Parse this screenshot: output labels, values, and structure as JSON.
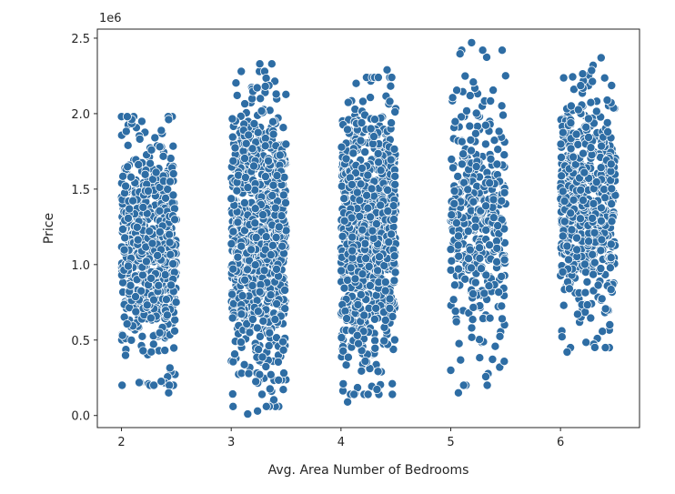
{
  "chart_data": {
    "type": "scatter",
    "title": "",
    "xlabel": "Avg. Area Number of Bedrooms",
    "ylabel": "Price",
    "y_offset_label": "1e6",
    "xlim": [
      1.78,
      6.72
    ],
    "ylim": [
      -0.08,
      2.56
    ],
    "x_ticks": [
      2,
      3,
      4,
      5,
      6
    ],
    "x_tick_labels": [
      "2",
      "3",
      "4",
      "5",
      "6"
    ],
    "y_ticks": [
      0.0,
      0.5,
      1.0,
      1.5,
      2.0,
      2.5
    ],
    "y_tick_labels": [
      "0.0",
      "0.5",
      "1.0",
      "1.5",
      "2.0",
      "2.5"
    ],
    "y_unit_note": "Price values in units of 1e6",
    "grid": false,
    "legend": "none",
    "marker_color": "#2e6da4",
    "clusters": [
      {
        "bedrooms_band": [
          2.0,
          2.5
        ],
        "price_range": [
          0.15,
          2.03
        ],
        "density": "medium"
      },
      {
        "bedrooms_band": [
          3.0,
          3.5
        ],
        "price_range": [
          0.01,
          2.33
        ],
        "density": "high"
      },
      {
        "bedrooms_band": [
          4.0,
          4.5
        ],
        "price_range": [
          0.09,
          2.29
        ],
        "density": "high"
      },
      {
        "bedrooms_band": [
          5.0,
          5.5
        ],
        "price_range": [
          0.15,
          2.47
        ],
        "density": "low"
      },
      {
        "bedrooms_band": [
          6.0,
          6.5
        ],
        "price_range": [
          0.4,
          2.37
        ],
        "density": "medium"
      }
    ],
    "highlighted_points": [
      {
        "x": 2.43,
        "y": 0.15
      },
      {
        "x": 3.15,
        "y": 0.01
      },
      {
        "x": 3.24,
        "y": 0.03
      },
      {
        "x": 3.28,
        "y": 0.14
      },
      {
        "x": 3.26,
        "y": 2.33
      },
      {
        "x": 3.37,
        "y": 2.33
      },
      {
        "x": 4.02,
        "y": 0.21
      },
      {
        "x": 4.06,
        "y": 0.09
      },
      {
        "x": 4.42,
        "y": 2.29
      },
      {
        "x": 5.0,
        "y": 0.3
      },
      {
        "x": 5.07,
        "y": 0.15
      },
      {
        "x": 5.19,
        "y": 2.47
      },
      {
        "x": 6.37,
        "y": 2.37
      },
      {
        "x": 6.06,
        "y": 0.42
      }
    ]
  }
}
